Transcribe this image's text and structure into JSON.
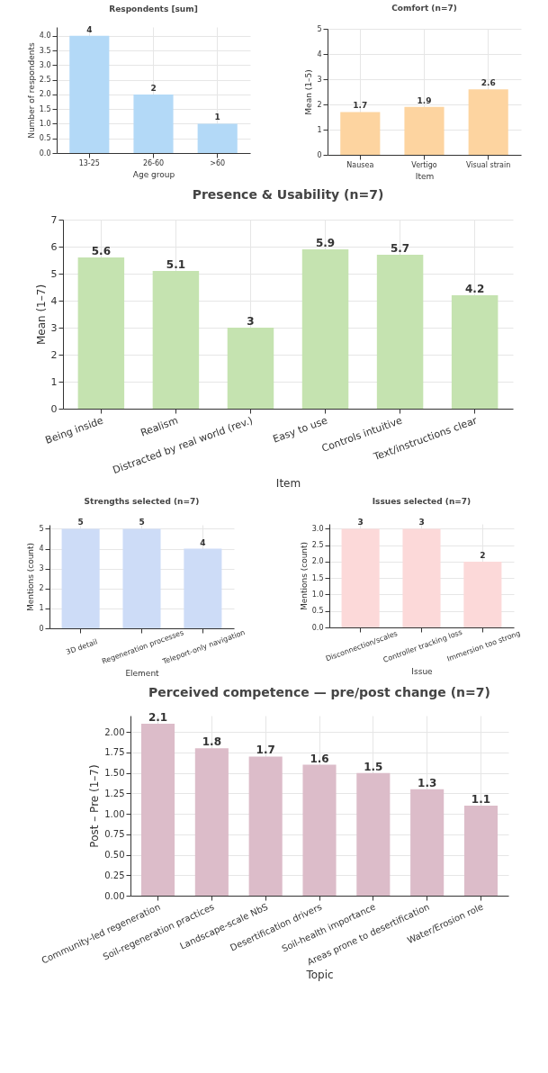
{
  "chart_data": [
    {
      "type": "bar",
      "title": "Respondents [sum]",
      "xlabel": "Age group",
      "ylabel": "Number of respondents",
      "categories": [
        "13-25",
        "26-60",
        ">60"
      ],
      "values": [
        4,
        2,
        1
      ],
      "color": "#b3d9f7",
      "data_labels": true,
      "grid": true,
      "ylim": [
        0,
        4.3
      ],
      "yticks": [
        {
          "value": 0,
          "label": "0.0"
        },
        {
          "value": 0.5,
          "label": "0.5"
        },
        {
          "value": 1,
          "label": "1.0"
        },
        {
          "value": 1.5,
          "label": "1.5"
        },
        {
          "value": 2,
          "label": "2.0"
        },
        {
          "value": 2.5,
          "label": "2.5"
        },
        {
          "value": 3,
          "label": "3.0"
        },
        {
          "value": 3.5,
          "label": "3.5"
        },
        {
          "value": 4,
          "label": "4.0"
        }
      ]
    },
    {
      "type": "bar",
      "title": "Comfort (n=7)",
      "xlabel": "Item",
      "ylabel": "Mean (1–5)",
      "categories": [
        "Nausea",
        "Vertigo",
        "Visual strain"
      ],
      "values": [
        1.7,
        1.9,
        2.6
      ],
      "color": "#fdd4a0",
      "data_labels": true,
      "grid": true,
      "ylim": [
        0,
        5
      ],
      "yticks": [
        0,
        1,
        2,
        3,
        4,
        5
      ]
    },
    {
      "type": "bar",
      "title": "Presence & Usability (n=7)",
      "xlabel": "Item",
      "ylabel": "Mean (1–7)",
      "categories": [
        "Being inside",
        "Realism",
        "Distracted by real world (rev.)",
        "Easy to use",
        "Controls intuitive",
        "Text/instructions clear"
      ],
      "values": [
        5.6,
        5.1,
        3,
        5.9,
        5.7,
        4.2
      ],
      "color": "#c5e3b0",
      "data_labels": true,
      "grid": true,
      "ylim": [
        0,
        7
      ],
      "yticks": [
        0,
        1,
        2,
        3,
        4,
        5,
        6,
        7
      ]
    },
    {
      "type": "bar",
      "title": "Strengths selected (n=7)",
      "xlabel": "Element",
      "ylabel": "Mentions (count)",
      "categories": [
        "3D detail",
        "Regeneration processes",
        "Teleport-only navigation"
      ],
      "values": [
        5,
        5,
        4
      ],
      "color": "#cddcf7",
      "data_labels": true,
      "grid": true,
      "ylim": [
        0,
        5.2
      ],
      "yticks": [
        0,
        1,
        2,
        3,
        4,
        5
      ]
    },
    {
      "type": "bar",
      "title": "Issues selected (n=7)",
      "xlabel": "Issue",
      "ylabel": "Mentions (count)",
      "categories": [
        "Disconnection/scales",
        "Controller tracking loss",
        "Immersion too strong"
      ],
      "values": [
        3,
        3,
        2
      ],
      "color": "#fcd9d9",
      "data_labels": true,
      "grid": true,
      "ylim": [
        0,
        3.15
      ],
      "yticks": [
        {
          "value": 0,
          "label": "0.0"
        },
        {
          "value": 0.5,
          "label": "0.5"
        },
        {
          "value": 1,
          "label": "1.0"
        },
        {
          "value": 1.5,
          "label": "1.5"
        },
        {
          "value": 2,
          "label": "2.0"
        },
        {
          "value": 2.5,
          "label": "2.5"
        },
        {
          "value": 3,
          "label": "3.0"
        }
      ]
    },
    {
      "type": "bar",
      "title": "Perceived competence — pre/post change (n=7)",
      "xlabel": "Topic",
      "ylabel": "Post – Pre (1–7)",
      "categories": [
        "Community-led regeneration",
        "Soil-regeneration practices",
        "Landscape-scale NbS",
        "Desertification drivers",
        "Soil-health importance",
        "Areas prone to desertification",
        "Water/Erosion role"
      ],
      "values": [
        2.1,
        1.8,
        1.7,
        1.6,
        1.5,
        1.3,
        1.1
      ],
      "color": "#dcbcc9",
      "data_labels": true,
      "grid": true,
      "ylim": [
        0,
        2.2
      ],
      "yticks": [
        {
          "value": 0,
          "label": "0.00"
        },
        {
          "value": 0.25,
          "label": "0.25"
        },
        {
          "value": 0.5,
          "label": "0.50"
        },
        {
          "value": 0.75,
          "label": "0.75"
        },
        {
          "value": 1,
          "label": "1.00"
        },
        {
          "value": 1.25,
          "label": "1.25"
        },
        {
          "value": 1.5,
          "label": "1.50"
        },
        {
          "value": 1.75,
          "label": "1.75"
        },
        {
          "value": 2,
          "label": "2.00"
        }
      ]
    }
  ]
}
